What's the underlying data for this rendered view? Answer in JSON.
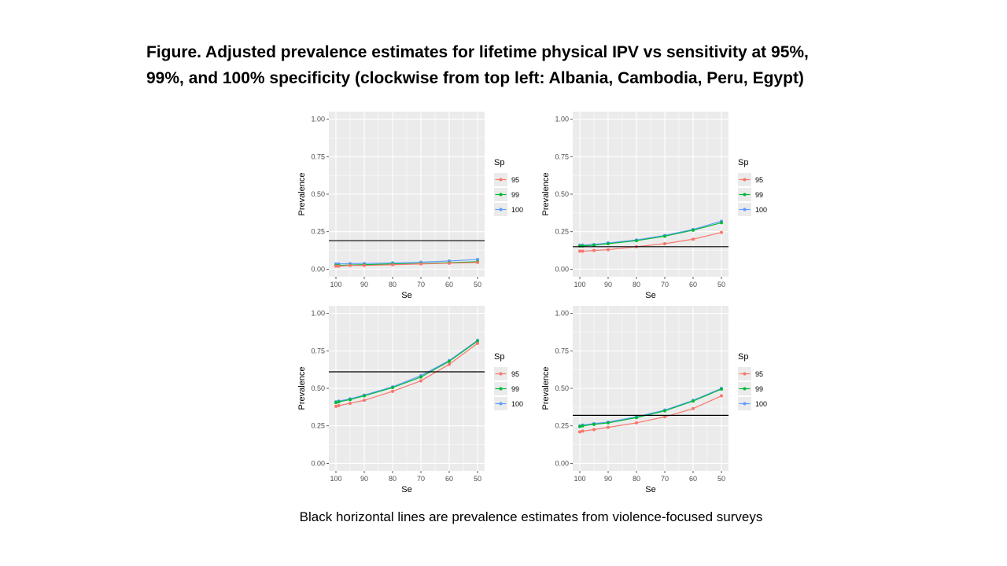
{
  "title": {
    "line1": "Figure. Adjusted prevalence estimates for lifetime physical IPV vs sensitivity at 95%,",
    "line2": "99%, and 100% specificity (clockwise from top left: Albania, Cambodia, Peru, Egypt)"
  },
  "caption": "Black horizontal lines are prevalence estimates from violence-focused surveys",
  "colors": {
    "panel_bg": "#ebebeb",
    "grid": "#ffffff",
    "sp95": "#f8766d",
    "sp99": "#00ba38",
    "sp100": "#619cff",
    "reference_line": "#000000"
  },
  "chart_data": [
    {
      "type": "line",
      "xlabel": "Se",
      "ylabel": "Prevalence",
      "x_ticks": [
        "100",
        "90",
        "80",
        "70",
        "60",
        "50"
      ],
      "y_ticks": [
        "0.00",
        "0.25",
        "0.50",
        "0.75",
        "1.00"
      ],
      "xlim": [
        100,
        50
      ],
      "ylim": [
        0,
        1
      ],
      "grid": true,
      "legend_title": "Sp",
      "legend_position": "right",
      "x": [
        100,
        99,
        95,
        90,
        80,
        70,
        60,
        50
      ],
      "series": [
        {
          "name": "95",
          "values": [
            0.02,
            0.02,
            0.025,
            0.025,
            0.03,
            0.035,
            0.04,
            0.045
          ]
        },
        {
          "name": "99",
          "values": [
            0.025,
            0.025,
            0.028,
            0.03,
            0.035,
            0.038,
            0.043,
            0.05
          ]
        },
        {
          "name": "100",
          "values": [
            0.035,
            0.035,
            0.037,
            0.038,
            0.042,
            0.047,
            0.055,
            0.065
          ]
        }
      ],
      "reference_line": 0.19
    },
    {
      "type": "line",
      "xlabel": "Se",
      "ylabel": "Prevalence",
      "x_ticks": [
        "100",
        "90",
        "80",
        "70",
        "60",
        "50"
      ],
      "y_ticks": [
        "0.00",
        "0.25",
        "0.50",
        "0.75",
        "1.00"
      ],
      "xlim": [
        100,
        50
      ],
      "ylim": [
        0,
        1
      ],
      "grid": true,
      "legend_title": "Sp",
      "legend_position": "right",
      "x": [
        100,
        99,
        95,
        90,
        80,
        70,
        60,
        50
      ],
      "series": [
        {
          "name": "95",
          "values": [
            0.12,
            0.12,
            0.125,
            0.13,
            0.15,
            0.17,
            0.2,
            0.245
          ]
        },
        {
          "name": "99",
          "values": [
            0.155,
            0.155,
            0.16,
            0.17,
            0.19,
            0.22,
            0.26,
            0.31
          ]
        },
        {
          "name": "100",
          "values": [
            0.16,
            0.16,
            0.165,
            0.175,
            0.195,
            0.225,
            0.265,
            0.32
          ]
        }
      ],
      "reference_line": 0.15
    },
    {
      "type": "line",
      "xlabel": "Se",
      "ylabel": "Prevalence",
      "x_ticks": [
        "100",
        "90",
        "80",
        "70",
        "60",
        "50"
      ],
      "y_ticks": [
        "0.00",
        "0.25",
        "0.50",
        "0.75",
        "1.00"
      ],
      "xlim": [
        100,
        50
      ],
      "ylim": [
        0,
        1
      ],
      "grid": true,
      "legend_title": "Sp",
      "legend_position": "right",
      "x": [
        100,
        99,
        95,
        90,
        80,
        70,
        60,
        50
      ],
      "series": [
        {
          "name": "95",
          "values": [
            0.38,
            0.385,
            0.4,
            0.42,
            0.48,
            0.55,
            0.66,
            0.8
          ]
        },
        {
          "name": "99",
          "values": [
            0.405,
            0.41,
            0.425,
            0.45,
            0.505,
            0.575,
            0.68,
            0.815
          ]
        },
        {
          "name": "100",
          "values": [
            0.41,
            0.415,
            0.43,
            0.455,
            0.51,
            0.585,
            0.685,
            0.82
          ]
        }
      ],
      "reference_line": 0.61
    },
    {
      "type": "line",
      "xlabel": "Se",
      "ylabel": "Prevalence",
      "x_ticks": [
        "100",
        "90",
        "80",
        "70",
        "60",
        "50"
      ],
      "y_ticks": [
        "0.00",
        "0.25",
        "0.50",
        "0.75",
        "1.00"
      ],
      "xlim": [
        100,
        50
      ],
      "ylim": [
        0,
        1
      ],
      "grid": true,
      "legend_title": "Sp",
      "legend_position": "right",
      "x": [
        100,
        99,
        95,
        90,
        80,
        70,
        60,
        50
      ],
      "series": [
        {
          "name": "95",
          "values": [
            0.21,
            0.215,
            0.225,
            0.24,
            0.27,
            0.31,
            0.365,
            0.45
          ]
        },
        {
          "name": "99",
          "values": [
            0.245,
            0.25,
            0.26,
            0.27,
            0.305,
            0.35,
            0.415,
            0.495
          ]
        },
        {
          "name": "100",
          "values": [
            0.25,
            0.255,
            0.265,
            0.275,
            0.31,
            0.355,
            0.42,
            0.5
          ]
        }
      ],
      "reference_line": 0.32
    }
  ]
}
